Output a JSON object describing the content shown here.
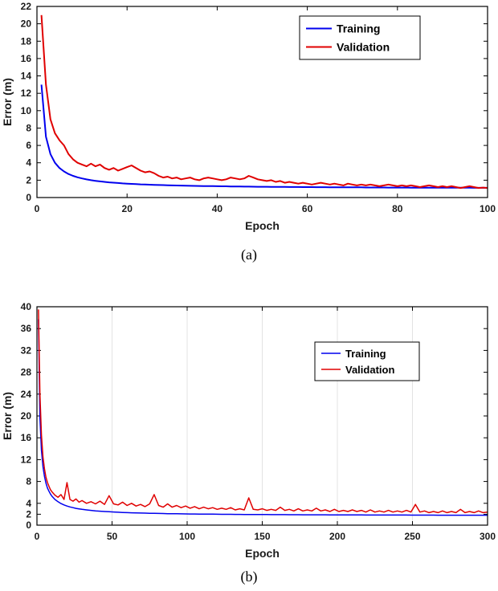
{
  "figure": {
    "caption_a": "(a)",
    "caption_b": "(b)"
  },
  "colors": {
    "training": "#0000ee",
    "validation": "#e00000",
    "axis": "#000000",
    "grid": "#e3e3e3",
    "background": "#ffffff"
  },
  "chart_data": [
    {
      "id": "a",
      "type": "line",
      "title": "",
      "xlabel": "Epoch",
      "ylabel": "Error (m)",
      "xlim": [
        0,
        100
      ],
      "ylim": [
        0,
        22
      ],
      "xticks": [
        0,
        20,
        40,
        60,
        80,
        100
      ],
      "yticks": [
        0,
        2,
        4,
        6,
        8,
        10,
        12,
        14,
        16,
        18,
        20,
        22
      ],
      "grid_x": false,
      "legend": {
        "position": "top-right",
        "entries": [
          "Training",
          "Validation"
        ]
      },
      "series": [
        {
          "name": "Training",
          "color_key": "training",
          "x": [
            1,
            2,
            3,
            4,
            5,
            6,
            7,
            8,
            9,
            10,
            11,
            12,
            13,
            14,
            15,
            16,
            17,
            18,
            19,
            20,
            21,
            22,
            23,
            24,
            25,
            26,
            27,
            28,
            29,
            30,
            31,
            32,
            33,
            34,
            35,
            36,
            37,
            38,
            39,
            40,
            41,
            42,
            43,
            44,
            45,
            46,
            47,
            48,
            49,
            50,
            51,
            52,
            53,
            54,
            55,
            56,
            57,
            58,
            59,
            60,
            61,
            62,
            63,
            64,
            65,
            66,
            67,
            68,
            69,
            70,
            71,
            72,
            73,
            74,
            75,
            76,
            77,
            78,
            79,
            80,
            81,
            82,
            83,
            84,
            85,
            86,
            87,
            88,
            89,
            90,
            91,
            92,
            93,
            94,
            95,
            96,
            97,
            98,
            99,
            100
          ],
          "y": [
            13,
            7,
            5,
            4,
            3.4,
            3,
            2.71,
            2.5,
            2.33,
            2.2,
            2.09,
            2,
            1.92,
            1.86,
            1.8,
            1.75,
            1.71,
            1.67,
            1.63,
            1.6,
            1.57,
            1.55,
            1.52,
            1.5,
            1.48,
            1.46,
            1.44,
            1.43,
            1.41,
            1.4,
            1.39,
            1.38,
            1.36,
            1.35,
            1.34,
            1.33,
            1.32,
            1.32,
            1.31,
            1.3,
            1.29,
            1.29,
            1.28,
            1.27,
            1.27,
            1.26,
            1.26,
            1.25,
            1.24,
            1.24,
            1.24,
            1.23,
            1.23,
            1.22,
            1.22,
            1.21,
            1.21,
            1.21,
            1.2,
            1.2,
            1.2,
            1.19,
            1.19,
            1.19,
            1.18,
            1.18,
            1.18,
            1.18,
            1.17,
            1.17,
            1.17,
            1.17,
            1.16,
            1.16,
            1.16,
            1.16,
            1.16,
            1.15,
            1.15,
            1.15,
            1.15,
            1.15,
            1.14,
            1.14,
            1.14,
            1.14,
            1.14,
            1.14,
            1.13,
            1.13,
            1.13,
            1.13,
            1.13,
            1.13,
            1.13,
            1.13,
            1.12,
            1.12,
            1.12,
            1.12
          ]
        },
        {
          "name": "Validation",
          "color_key": "validation",
          "x": [
            1,
            2,
            3,
            4,
            5,
            6,
            7,
            8,
            9,
            10,
            11,
            12,
            13,
            14,
            15,
            16,
            17,
            18,
            19,
            20,
            21,
            22,
            23,
            24,
            25,
            26,
            27,
            28,
            29,
            30,
            31,
            32,
            33,
            34,
            35,
            36,
            37,
            38,
            39,
            40,
            41,
            42,
            43,
            44,
            45,
            46,
            47,
            48,
            49,
            50,
            51,
            52,
            53,
            54,
            55,
            56,
            57,
            58,
            59,
            60,
            61,
            62,
            63,
            64,
            65,
            66,
            67,
            68,
            69,
            70,
            71,
            72,
            73,
            74,
            75,
            76,
            77,
            78,
            79,
            80,
            81,
            82,
            83,
            84,
            85,
            86,
            87,
            88,
            89,
            90,
            91,
            92,
            93,
            94,
            95,
            96,
            97,
            98,
            99,
            100
          ],
          "y": [
            21,
            13,
            9,
            7.4,
            6.6,
            6,
            5,
            4.4,
            4,
            3.8,
            3.6,
            3.9,
            3.6,
            3.8,
            3.4,
            3.2,
            3.4,
            3.1,
            3.3,
            3.5,
            3.7,
            3.4,
            3.1,
            2.9,
            3,
            2.8,
            2.5,
            2.3,
            2.4,
            2.2,
            2.3,
            2.1,
            2.2,
            2.3,
            2.1,
            2,
            2.2,
            2.3,
            2.2,
            2.1,
            2,
            2.1,
            2.3,
            2.2,
            2.1,
            2.2,
            2.5,
            2.3,
            2.1,
            2,
            1.9,
            2,
            1.8,
            1.9,
            1.7,
            1.8,
            1.7,
            1.6,
            1.7,
            1.6,
            1.5,
            1.6,
            1.7,
            1.6,
            1.5,
            1.6,
            1.5,
            1.4,
            1.6,
            1.5,
            1.4,
            1.5,
            1.4,
            1.5,
            1.4,
            1.3,
            1.4,
            1.5,
            1.4,
            1.3,
            1.4,
            1.3,
            1.4,
            1.3,
            1.2,
            1.3,
            1.4,
            1.3,
            1.2,
            1.3,
            1.2,
            1.3,
            1.2,
            1.1,
            1.2,
            1.3,
            1.2,
            1.1,
            1.15,
            1.1
          ]
        }
      ]
    },
    {
      "id": "b",
      "type": "line",
      "title": "",
      "xlabel": "Epoch",
      "ylabel": "Error (m)",
      "xlim": [
        0,
        300
      ],
      "ylim": [
        0,
        40
      ],
      "xticks": [
        0,
        50,
        100,
        150,
        200,
        250,
        300
      ],
      "yticks": [
        0,
        2,
        4,
        8,
        12,
        16,
        20,
        24,
        28,
        32,
        36,
        40
      ],
      "grid_x": true,
      "legend": {
        "position": "top-right",
        "entries": [
          "Training",
          "Validation"
        ]
      },
      "series": [
        {
          "name": "Training",
          "color_key": "training",
          "x": [
            1,
            2,
            3,
            4,
            5,
            6,
            7,
            8,
            9,
            10,
            12,
            14,
            16,
            18,
            20,
            22,
            24,
            26,
            28,
            30,
            33,
            36,
            39,
            42,
            45,
            48,
            51,
            54,
            57,
            60,
            63,
            66,
            69,
            72,
            75,
            78,
            81,
            84,
            87,
            90,
            93,
            96,
            99,
            102,
            105,
            108,
            111,
            114,
            117,
            120,
            123,
            126,
            129,
            132,
            135,
            138,
            141,
            144,
            147,
            150,
            153,
            156,
            159,
            162,
            165,
            168,
            171,
            174,
            177,
            180,
            183,
            186,
            189,
            192,
            195,
            198,
            201,
            204,
            207,
            210,
            213,
            216,
            219,
            222,
            225,
            228,
            231,
            234,
            237,
            240,
            243,
            246,
            249,
            252,
            255,
            258,
            261,
            264,
            267,
            270,
            273,
            276,
            279,
            282,
            285,
            288,
            291,
            294,
            297,
            300
          ],
          "y": [
            37.7,
            19.7,
            13.7,
            10.7,
            8.9,
            7.7,
            6.8,
            6.2,
            5.7,
            5.3,
            4.7,
            4.3,
            3.95,
            3.7,
            3.5,
            3.34,
            3.2,
            3.08,
            2.99,
            2.9,
            2.79,
            2.7,
            2.62,
            2.56,
            2.5,
            2.45,
            2.41,
            2.37,
            2.33,
            2.3,
            2.27,
            2.25,
            2.22,
            2.2,
            2.18,
            2.16,
            2.14,
            2.13,
            2.11,
            2.1,
            2.09,
            2.08,
            2.06,
            2.05,
            2.04,
            2.03,
            2.02,
            2.02,
            2.01,
            2.0,
            1.99,
            1.99,
            1.98,
            1.97,
            1.97,
            1.96,
            1.96,
            1.95,
            1.94,
            1.94,
            1.94,
            1.93,
            1.93,
            1.92,
            1.92,
            1.91,
            1.91,
            1.91,
            1.9,
            1.9,
            1.9,
            1.89,
            1.89,
            1.89,
            1.88,
            1.88,
            1.88,
            1.88,
            1.87,
            1.87,
            1.87,
            1.87,
            1.86,
            1.86,
            1.86,
            1.86,
            1.86,
            1.85,
            1.85,
            1.85,
            1.85,
            1.85,
            1.84,
            1.84,
            1.84,
            1.84,
            1.84,
            1.84,
            1.83,
            1.83,
            1.83,
            1.83,
            1.83,
            1.83,
            1.83,
            1.83,
            1.82,
            1.82,
            1.82,
            1.82
          ]
        },
        {
          "name": "Validation",
          "color_key": "validation",
          "x": [
            1,
            2,
            3,
            4,
            5,
            6,
            7,
            8,
            9,
            10,
            12,
            14,
            16,
            18,
            20,
            22,
            24,
            26,
            28,
            30,
            33,
            36,
            39,
            42,
            45,
            48,
            51,
            54,
            57,
            60,
            63,
            66,
            69,
            72,
            75,
            78,
            81,
            84,
            87,
            90,
            93,
            96,
            99,
            102,
            105,
            108,
            111,
            114,
            117,
            120,
            123,
            126,
            129,
            132,
            135,
            138,
            141,
            144,
            147,
            150,
            153,
            156,
            159,
            162,
            165,
            168,
            171,
            174,
            177,
            180,
            183,
            186,
            189,
            192,
            195,
            198,
            201,
            204,
            207,
            210,
            213,
            216,
            219,
            222,
            225,
            228,
            231,
            234,
            237,
            240,
            243,
            246,
            249,
            252,
            255,
            258,
            261,
            264,
            267,
            270,
            273,
            276,
            279,
            282,
            285,
            288,
            291,
            294,
            297,
            300
          ],
          "y": [
            39.5,
            24,
            16.5,
            12.5,
            10.3,
            8.8,
            7.8,
            7.1,
            6.5,
            6.1,
            5.5,
            5.1,
            5.6,
            4.7,
            7.8,
            4.7,
            4.4,
            4.8,
            4.2,
            4.5,
            4,
            4.3,
            3.9,
            4.4,
            3.8,
            5.4,
            3.9,
            3.7,
            4.2,
            3.6,
            4,
            3.5,
            3.8,
            3.4,
            3.9,
            5.6,
            3.6,
            3.3,
            3.9,
            3.3,
            3.6,
            3.2,
            3.5,
            3.1,
            3.4,
            3,
            3.3,
            3,
            3.2,
            2.9,
            3.1,
            2.9,
            3.2,
            2.8,
            3,
            2.8,
            5,
            2.9,
            2.8,
            3,
            2.7,
            2.9,
            2.7,
            3.3,
            2.7,
            2.9,
            2.6,
            3,
            2.6,
            2.8,
            2.6,
            3.1,
            2.6,
            2.8,
            2.5,
            2.9,
            2.5,
            2.7,
            2.5,
            2.8,
            2.5,
            2.7,
            2.4,
            2.8,
            2.4,
            2.6,
            2.4,
            2.7,
            2.4,
            2.6,
            2.4,
            2.7,
            2.4,
            3.8,
            2.4,
            2.6,
            2.3,
            2.5,
            2.3,
            2.6,
            2.3,
            2.5,
            2.3,
            2.9,
            2.3,
            2.5,
            2.3,
            2.6,
            2.3,
            2.4
          ]
        }
      ]
    }
  ]
}
